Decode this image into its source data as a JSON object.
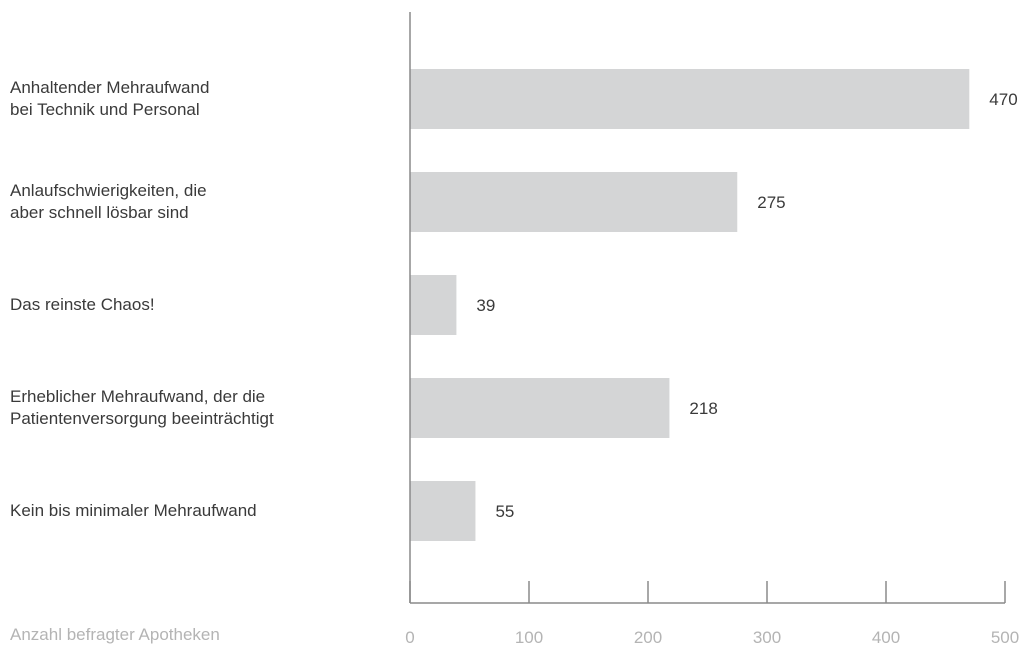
{
  "chart_data": {
    "type": "bar",
    "orientation": "horizontal",
    "title": "",
    "xlabel": "Anzahl befragter Apotheken",
    "categories": [
      "Anhaltender Mehraufwand\nbei Technik und Personal",
      "Anlaufschwierigkeiten, die\naber schnell lösbar sind",
      "Das reinste Chaos!",
      "Erheblicher Mehraufwand, der die\nPatientenversorgung beeinträchtigt",
      "Kein bis minimaler Mehraufwand"
    ],
    "values": [
      470,
      275,
      39,
      218,
      55
    ],
    "value_labels": [
      "470",
      "275",
      "39",
      "218",
      "55"
    ],
    "xlim": [
      0,
      500
    ],
    "x_ticks": [
      0,
      100,
      200,
      300,
      400,
      500
    ],
    "x_tick_labels": [
      "0",
      "100",
      "200",
      "300",
      "400",
      "500"
    ],
    "grid": false,
    "legend": "none",
    "colors": {
      "bar": "#d4d5d6",
      "axis": "#8a8a8a",
      "tick_label": "#b4b4b4",
      "value_label": "#3a3a3a",
      "category_label": "#3a3a3a"
    }
  }
}
